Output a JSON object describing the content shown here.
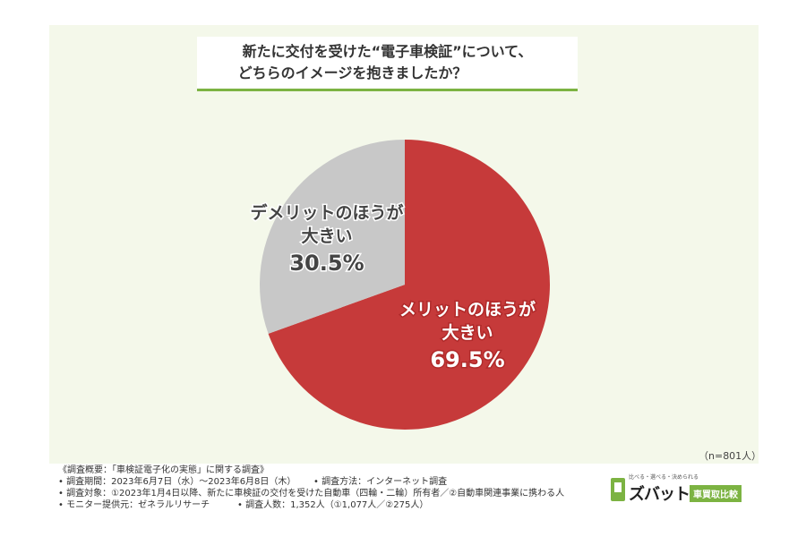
{
  "title": {
    "line1": "新たに交付を受けた“電子車検証”について、",
    "line2": "どちらのイメージを抱きましたか？"
  },
  "chart_data": {
    "type": "pie",
    "slices": [
      {
        "label_lines": [
          "メリットのほうが",
          "大きい"
        ],
        "value": 69.5,
        "value_text": "69.5%",
        "color": "#c63a3a"
      },
      {
        "label_lines": [
          "デメリットのほうが",
          "大きい"
        ],
        "value": 30.5,
        "value_text": "30.5%",
        "color": "#c8c8c8"
      }
    ],
    "start": "12 o'clock, clockwise"
  },
  "sample_note": "（n=801人）",
  "footer": {
    "overview": "《調査概要：「車検証電子化の実態」に関する調査》",
    "period": "• 調査期間：2023年6月7日（水）～2023年6月8日（木）",
    "method": "• 調査方法：インターネット調査",
    "target": "• 調査対象：①2023年1月4日以降、新たに車検証の交付を受けた自動車（四輪・二輪）所有者／②自動車関連事業に携わる人",
    "provider": "• モニター提供元：ゼネラルリサーチ",
    "count": "• 調査人数：1,352人（①1,077人／②275人）"
  },
  "logo": {
    "tagline": "比べる・選べる・決められる",
    "name": "ズバット",
    "badge": "車買取比較"
  },
  "colors": {
    "panel_bg": "#f4f8ea",
    "accent_green": "#7cb342",
    "merit_red": "#c63a3a",
    "demerit_gray": "#c8c8c8"
  }
}
